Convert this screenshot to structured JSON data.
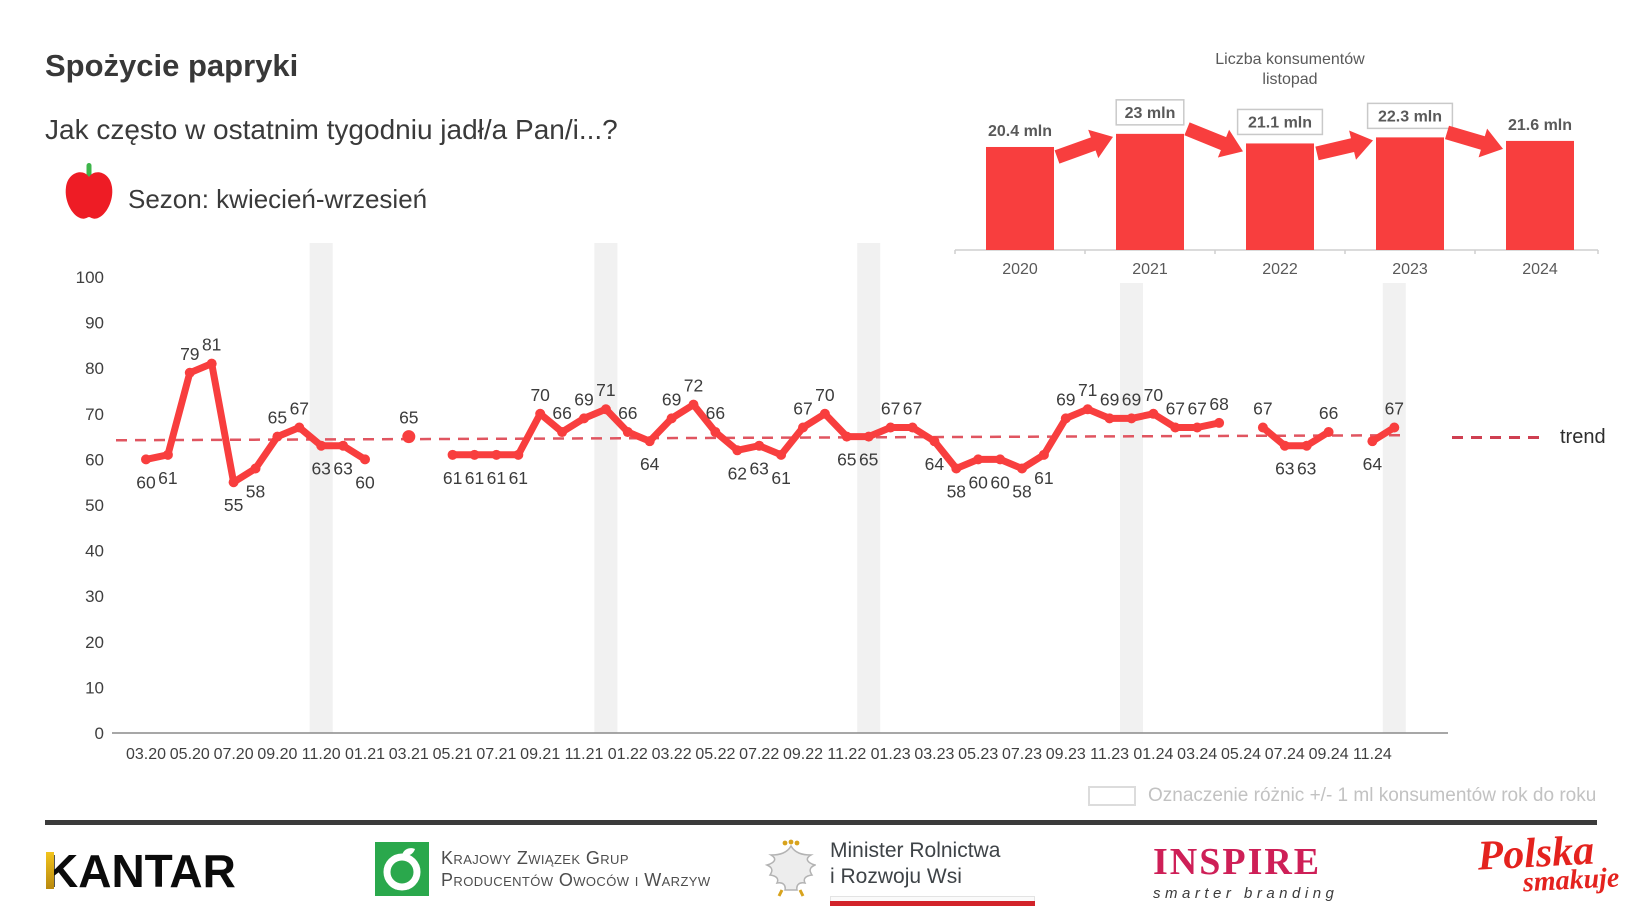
{
  "header": {
    "title": "Spożycie papryki",
    "subtitle": "Jak często w ostatnim tygodniu jadł/a Pan/i...?",
    "season_label": "Sezon: kwiecień-wrzesień"
  },
  "colors": {
    "red": "#f83e3e",
    "trend_red": "#d5505c",
    "band_gray": "#f1f1f1",
    "point_label_dark": "#3c3c3c",
    "bar_label_gray": "#595959",
    "note_gray": "#c2c2c2",
    "kzg_green": "#2aa84c",
    "inspire_pink": "#ce1f57",
    "polska_red": "#e4221e",
    "minister_flag_red": "#d2232a",
    "kantar_gold": "#d8a31d"
  },
  "chart_data": [
    {
      "type": "bar",
      "title_lines": [
        "Liczba konsumentów",
        "listopad"
      ],
      "categories": [
        "2020",
        "2021",
        "2022",
        "2023",
        "2024"
      ],
      "values": [
        20.4,
        23,
        21.1,
        22.3,
        21.6
      ],
      "value_labels": [
        "20.4 mln",
        "23 mln",
        "21.1 mln",
        "22.3 mln",
        "21.6 mln"
      ],
      "boxed": [
        false,
        true,
        true,
        true,
        false
      ],
      "arrows": [
        "up",
        "down",
        "up",
        "down"
      ],
      "ylim": [
        0,
        25
      ],
      "grid": false
    },
    {
      "type": "line",
      "series_name": "Spożycie papryki",
      "ylim": [
        0,
        100
      ],
      "y_ticks": [
        0,
        10,
        20,
        30,
        40,
        50,
        60,
        70,
        80,
        90,
        100
      ],
      "x_tick_labels": [
        "03.20",
        "05.20",
        "07.20",
        "09.20",
        "11.20",
        "01.21",
        "03.21",
        "05.21",
        "07.21",
        "09.21",
        "11.21",
        "01.22",
        "03.22",
        "05.22",
        "07.22",
        "09.22",
        "11.22",
        "01.23",
        "03.23",
        "05.23",
        "07.23",
        "09.23",
        "11.23",
        "01.24",
        "03.24",
        "05.24",
        "07.24",
        "09.24",
        "11.24"
      ],
      "segments": [
        [
          [
            0,
            60,
            "b"
          ],
          [
            1,
            61,
            "b"
          ],
          [
            2,
            79,
            "a"
          ],
          [
            3,
            81,
            "a"
          ],
          [
            4,
            55,
            "b"
          ],
          [
            5,
            58,
            "b"
          ],
          [
            6,
            65,
            "a"
          ],
          [
            7,
            67,
            "a"
          ],
          [
            8,
            63,
            "b"
          ],
          [
            9,
            63,
            "b"
          ],
          [
            10,
            60,
            "b"
          ]
        ],
        [
          [
            12,
            65,
            "a"
          ]
        ],
        [
          [
            14,
            61,
            "b"
          ],
          [
            15,
            61,
            "b"
          ],
          [
            16,
            61,
            "b"
          ],
          [
            17,
            61,
            "b"
          ],
          [
            18,
            70,
            "a"
          ],
          [
            19,
            66,
            "a"
          ],
          [
            20,
            69,
            "a"
          ],
          [
            21,
            71,
            "a"
          ],
          [
            22,
            66,
            "a"
          ],
          [
            23,
            64,
            "b"
          ],
          [
            24,
            69,
            "a"
          ],
          [
            25,
            72,
            "a"
          ],
          [
            26,
            66,
            "a"
          ],
          [
            27,
            62,
            "b"
          ],
          [
            28,
            63,
            "b"
          ],
          [
            29,
            61,
            "b"
          ],
          [
            30,
            67,
            "a"
          ],
          [
            31,
            70,
            "a"
          ],
          [
            32,
            65,
            "b"
          ],
          [
            33,
            65,
            "b"
          ],
          [
            34,
            67,
            "a"
          ],
          [
            35,
            67,
            "a"
          ],
          [
            36,
            64,
            "b"
          ],
          [
            37,
            58,
            "b"
          ],
          [
            38,
            60,
            "b"
          ],
          [
            39,
            60,
            "b"
          ],
          [
            40,
            58,
            "b"
          ],
          [
            41,
            61,
            "b"
          ],
          [
            42,
            69,
            "a"
          ],
          [
            43,
            71,
            "a"
          ],
          [
            44,
            69,
            "a"
          ],
          [
            45,
            69,
            "a"
          ],
          [
            46,
            70,
            "a"
          ],
          [
            47,
            67,
            "a"
          ],
          [
            48,
            67,
            "a"
          ],
          [
            49,
            68,
            "a"
          ]
        ],
        [
          [
            51,
            67,
            "a"
          ],
          [
            52,
            63,
            "b"
          ],
          [
            53,
            63,
            "b"
          ],
          [
            54,
            66,
            "a"
          ]
        ],
        [
          [
            56,
            64,
            "b"
          ],
          [
            57,
            67,
            "a"
          ]
        ]
      ],
      "november_highlight_indices": [
        8,
        21,
        33,
        45,
        57
      ],
      "trend": {
        "label": "trend",
        "start_value": 64.2,
        "end_value": 65.3
      },
      "grid": false,
      "legend_position": "right"
    }
  ],
  "trend_legend_label": "trend",
  "footnote_text": "Oznaczenie różnic +/- 1 ml konsumentów rok do roku",
  "footer": {
    "kantar": "KANTAR",
    "kzg_lines": [
      "Krajowy Związek Grup",
      "Producentów Owoców i Warzyw"
    ],
    "minister_lines": [
      "Minister Rolnictwa",
      "i Rozwoju Wsi"
    ],
    "inspire": "INSPIRE",
    "inspire_sub": "smarter branding",
    "polska_line1": "Polska",
    "polska_line2": "smakuje"
  }
}
